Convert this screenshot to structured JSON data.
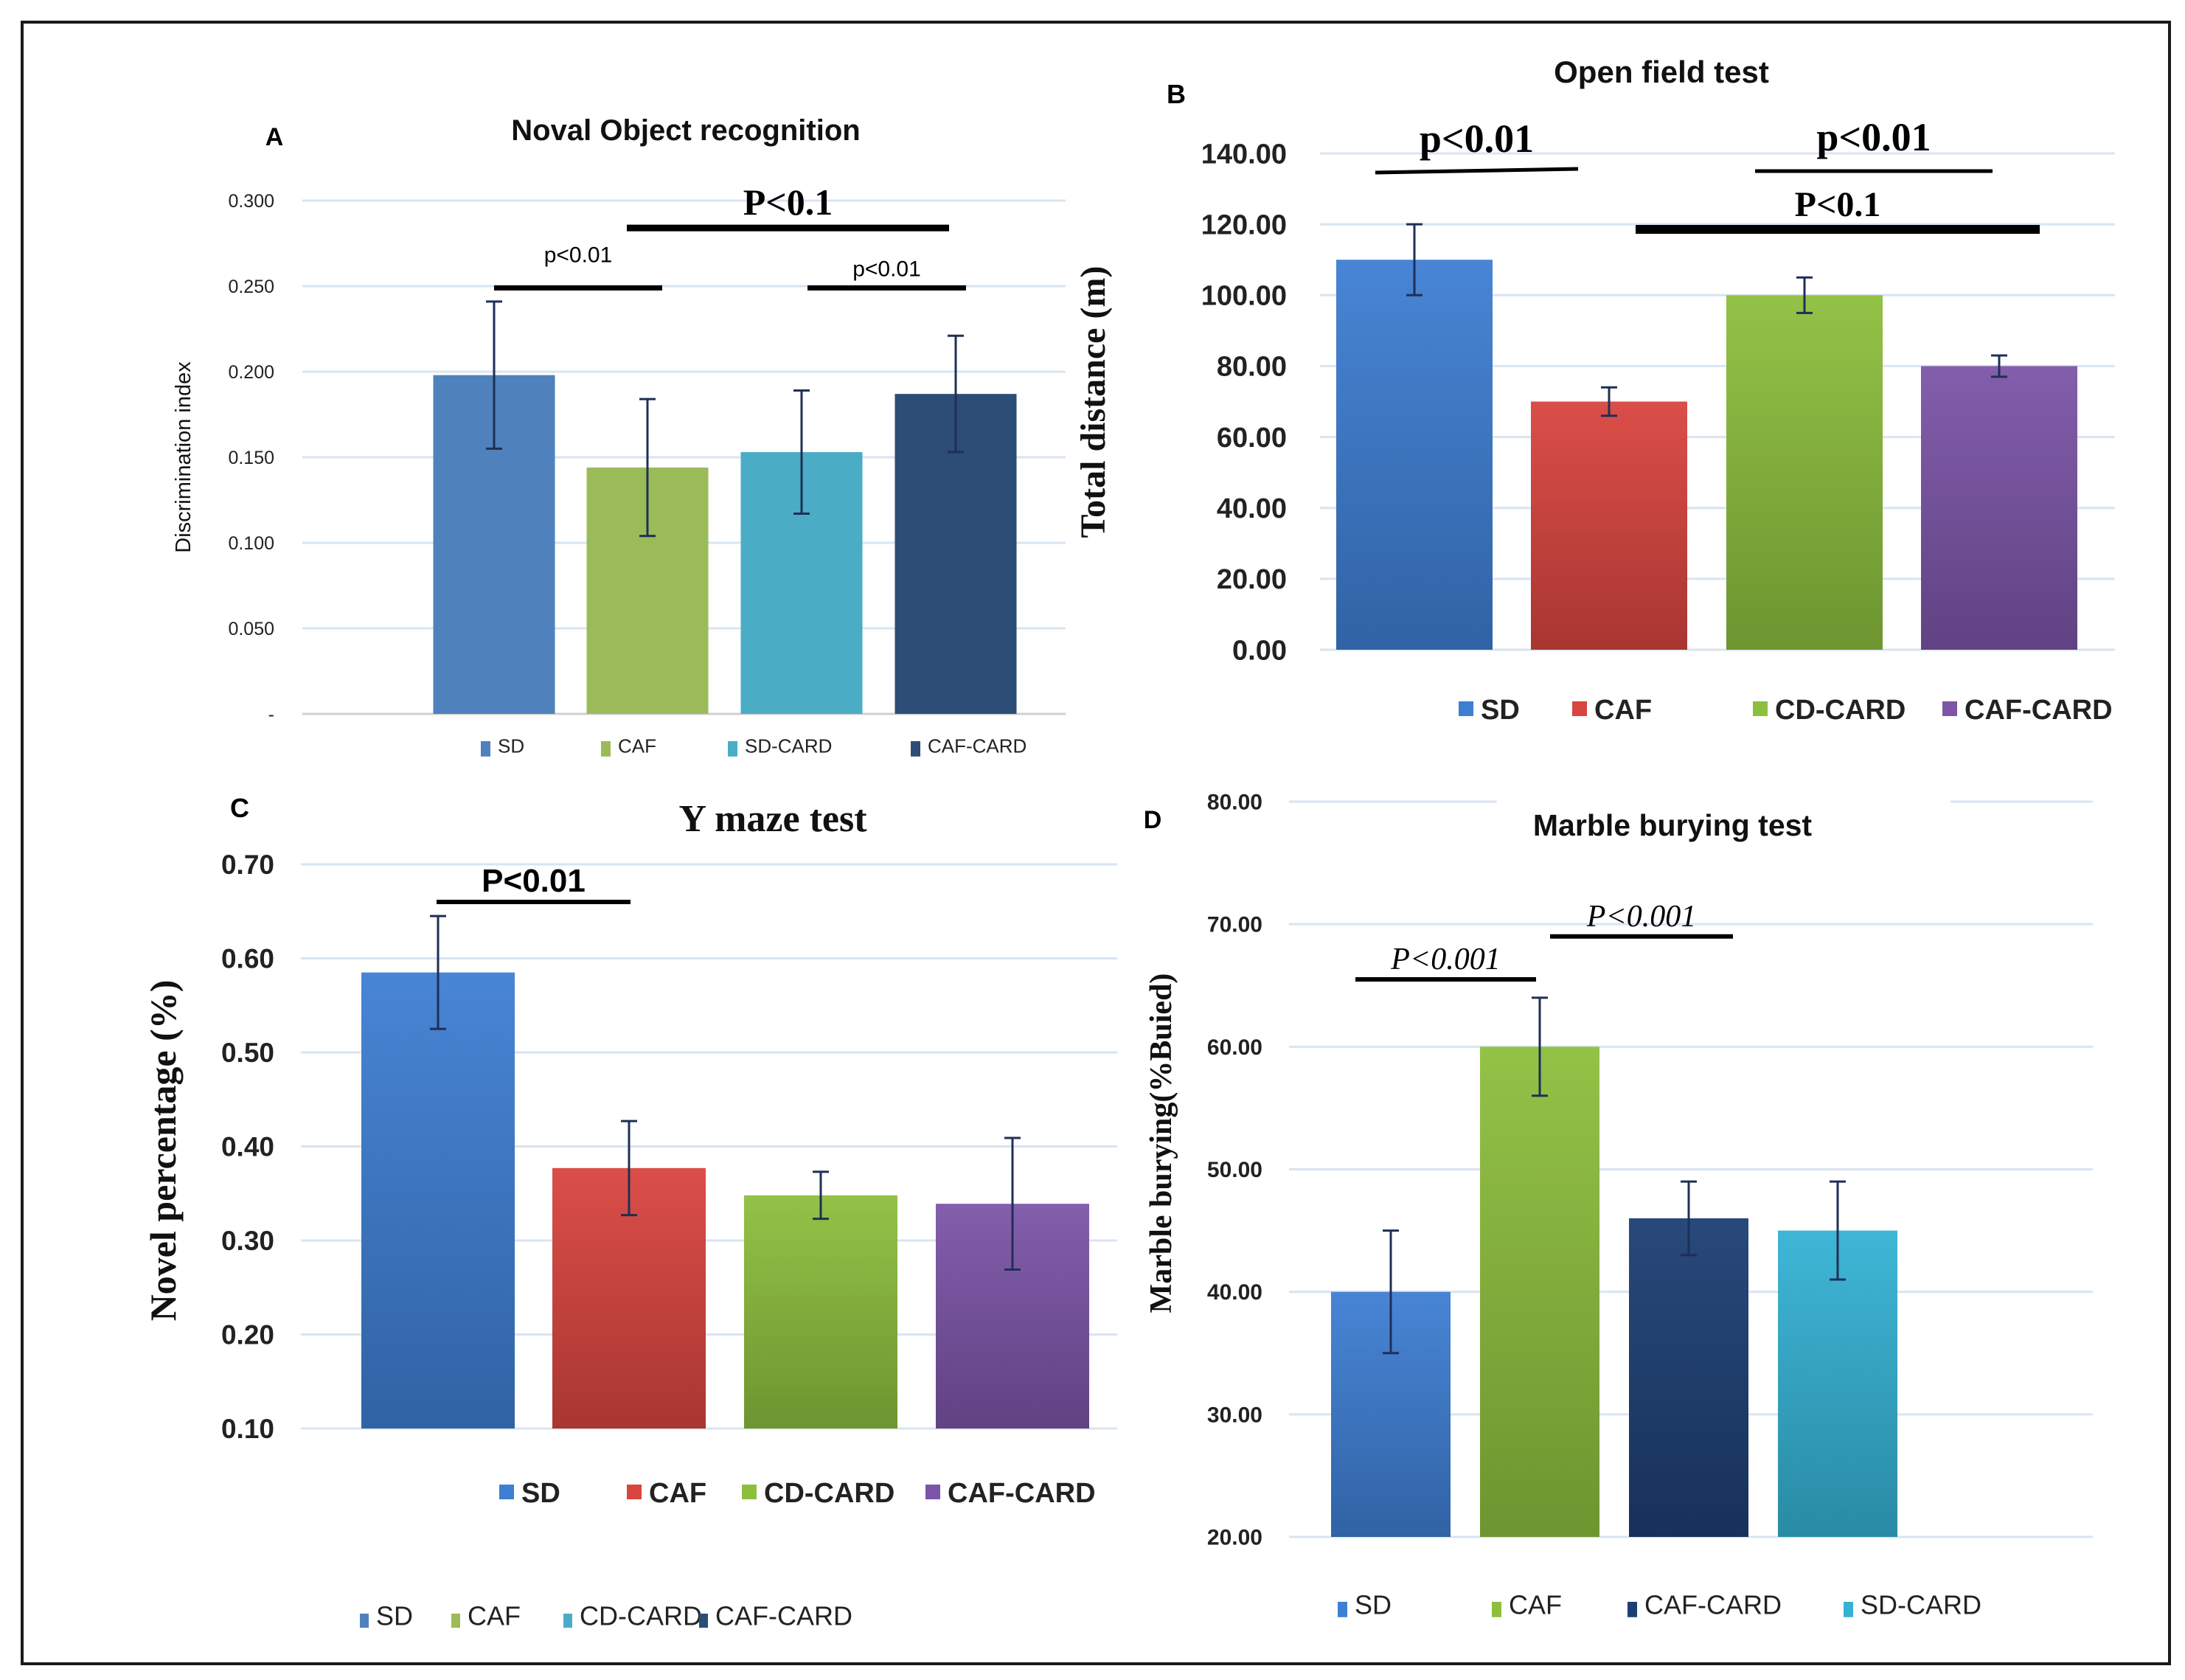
{
  "figure": {
    "panel_letters": [
      "A",
      "B",
      "C",
      "D"
    ]
  },
  "colors": {
    "sd_light": "#4f81bd",
    "caf_lightgreen": "#9bbb59",
    "sdcard_teal": "#4bacc6",
    "cafcard_navy": "#2c4d75",
    "blue": "#3e7fd3",
    "red": "#d9453f",
    "green": "#8dbf3d",
    "purple": "#7c55a8",
    "navy": "#1d3f74",
    "cyan": "#35b2d4"
  },
  "chart_data": [
    {
      "panel": "A",
      "type": "bar",
      "title": "Noval Object recognition",
      "ylabel": "Discrimination index",
      "xlabel": "",
      "categories": [
        "SD",
        "CAF",
        "SD-CARD",
        "CAF-CARD"
      ],
      "values": [
        0.198,
        0.144,
        0.153,
        0.187
      ],
      "errors": [
        0.043,
        0.04,
        0.036,
        0.034
      ],
      "ylim": [
        0,
        0.3
      ],
      "yticks": [
        0,
        0.05,
        0.1,
        0.15,
        0.2,
        0.25,
        0.3
      ],
      "ytick_labels": [
        "-",
        "0.050",
        "0.100",
        "0.150",
        "0.200",
        "0.250",
        "0.300"
      ],
      "legend": [
        "SD",
        "CAF",
        "SD-CARD",
        "CAF-CARD"
      ],
      "legend_position": "bottom",
      "colors": [
        "#4f81bd",
        "#9bbb59",
        "#4bacc6",
        "#2c4d75"
      ],
      "grid": true,
      "annotations": [
        {
          "text": "P<0.1",
          "from": "CAF",
          "to": "CAF-CARD",
          "y": 0.284
        },
        {
          "text": "p<0.01",
          "from": "SD",
          "to": "CAF",
          "y": 0.249
        },
        {
          "text": "p<0.01",
          "from": "SD-CARD",
          "to": "CAF-CARD",
          "y": 0.249
        }
      ]
    },
    {
      "panel": "B",
      "type": "bar",
      "title": "Open field test",
      "ylabel": "Total distance (m)",
      "xlabel": "",
      "categories": [
        "SD",
        "CAF",
        "CD-CARD",
        "CAF-CARD"
      ],
      "values": [
        110.0,
        70.0,
        100.0,
        80.0
      ],
      "errors": [
        10.0,
        4.0,
        5.0,
        3.0
      ],
      "ylim": [
        0,
        140
      ],
      "yticks": [
        0,
        20,
        40,
        60,
        80,
        100,
        120,
        140
      ],
      "ytick_labels": [
        "0.00",
        "20.00",
        "40.00",
        "60.00",
        "80.00",
        "100.00",
        "120.00",
        "140.00"
      ],
      "legend": [
        "SD",
        "CAF",
        "CD-CARD",
        "CAF-CARD"
      ],
      "legend_position": "bottom",
      "colors": [
        "#3e7fd3",
        "#d9453f",
        "#8dbf3d",
        "#7c55a8"
      ],
      "grid": true,
      "annotations": [
        {
          "text": "p<0.01",
          "from": "SD",
          "to": "CAF",
          "y": 134
        },
        {
          "text": "p<0.01",
          "from": "CD-CARD",
          "to": "CAF-CARD",
          "y": 134
        },
        {
          "text": "P<0.1",
          "from": "CAF",
          "to": "CAF-CARD",
          "y": 118
        }
      ]
    },
    {
      "panel": "C",
      "type": "bar",
      "title": "Y maze test",
      "ylabel": "Novel  percentage (%)",
      "xlabel": "",
      "categories": [
        "SD",
        "CAF",
        "CD-CARD",
        "CAF-CARD"
      ],
      "values": [
        0.585,
        0.377,
        0.348,
        0.339
      ],
      "errors": [
        0.06,
        0.05,
        0.025,
        0.07
      ],
      "ylim": [
        0.1,
        0.7
      ],
      "yticks": [
        0.1,
        0.2,
        0.3,
        0.4,
        0.5,
        0.6,
        0.7
      ],
      "ytick_labels": [
        "0.10",
        "0.20",
        "0.30",
        "0.40",
        "0.50",
        "0.60",
        "0.70"
      ],
      "legend": [
        "SD",
        "CAF",
        "CD-CARD",
        "CAF-CARD"
      ],
      "legend_position": "bottom",
      "colors": [
        "#3e7fd3",
        "#d9453f",
        "#8dbf3d",
        "#7c55a8"
      ],
      "secondary_legend": [
        "SD",
        "CAF",
        "CD-CARD",
        "CAF-CARD"
      ],
      "secondary_legend_colors": [
        "#4f81bd",
        "#9bbb59",
        "#4bacc6",
        "#2c4d75"
      ],
      "grid": true,
      "annotations": [
        {
          "text": "P<0.01",
          "from": "SD",
          "to": "CAF",
          "y": 0.66
        }
      ]
    },
    {
      "panel": "D",
      "type": "bar",
      "title": "Marble burying test",
      "ylabel": "Marble  burying(%Buied)",
      "xlabel": "",
      "categories": [
        "SD",
        "CAF",
        "CAF-CARD",
        "SD-CARD"
      ],
      "values": [
        40.0,
        60.0,
        46.0,
        45.0
      ],
      "errors": [
        5.0,
        4.0,
        3.0,
        4.0
      ],
      "ylim": [
        20,
        80
      ],
      "yticks": [
        20,
        30,
        40,
        50,
        60,
        70,
        80
      ],
      "ytick_labels": [
        "20.00",
        "30.00",
        "40.00",
        "50.00",
        "60.00",
        "70.00",
        "80.00"
      ],
      "legend": [
        "SD",
        "CAF",
        "CAF-CARD",
        "SD-CARD"
      ],
      "legend_position": "bottom",
      "colors": [
        "#3e7fd3",
        "#8dbf3d",
        "#1d3f74",
        "#35b2d4"
      ],
      "grid": true,
      "annotations": [
        {
          "text": "P<0.001",
          "from": "SD",
          "to": "CAF",
          "y": 65.5
        },
        {
          "text": "P<0.001",
          "from": "CAF",
          "to": "CAF-CARD",
          "y": 69.0
        }
      ]
    }
  ]
}
